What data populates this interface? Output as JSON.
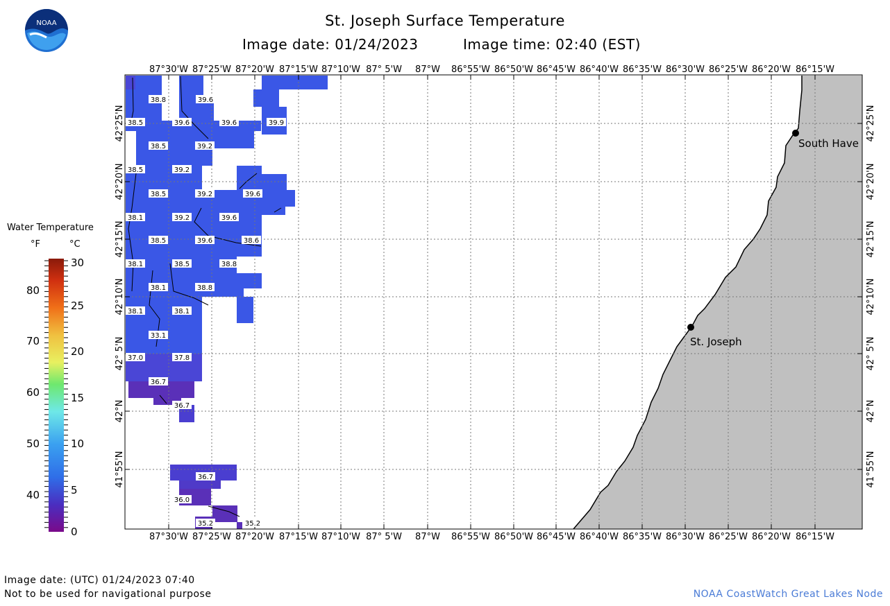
{
  "header": {
    "title": "St. Joseph Surface Temperature",
    "image_date_label": "Image date: 01/24/2023",
    "image_time_label": "Image time: 02:40 (EST)"
  },
  "logo": {
    "text": "NOAA",
    "icon": "noaa-logo-icon"
  },
  "legend": {
    "title": "Water Temperature",
    "unit_f": "°F",
    "unit_c": "°C",
    "f_ticks": [
      "80",
      "70",
      "60",
      "50",
      "40"
    ],
    "c_ticks": [
      "30",
      "25",
      "20",
      "15",
      "10",
      "5",
      "0"
    ]
  },
  "map": {
    "lon_labels": [
      "87°30'W",
      "87°25'W",
      "87°20'W",
      "87°15'W",
      "87°10'W",
      "87° 5'W",
      "87°W",
      "86°55'W",
      "86°50'W",
      "86°45'W",
      "86°40'W",
      "86°35'W",
      "86°30'W",
      "86°25'W",
      "86°20'W",
      "86°15'W"
    ],
    "lat_labels": [
      "42°25'N",
      "42°20'N",
      "42°15'N",
      "42°10'N",
      "42° 5'N",
      "42°N",
      "41°55'N"
    ],
    "cities": [
      {
        "name": "South Have"
      },
      {
        "name": "St. Joseph"
      }
    ],
    "temp_labels": [
      "38.8",
      "39.6",
      "38.5",
      "39.6",
      "39.6",
      "39.9",
      "38.5",
      "39.2",
      "38.5",
      "39.2",
      "38.5",
      "39.2",
      "39.6",
      "38.1",
      "39.2",
      "39.6",
      "38.5",
      "39.6",
      "38.6",
      "38.1",
      "38.5",
      "38.8",
      "38.1",
      "38.8",
      "38.1",
      "38.1",
      "33.1",
      "37.0",
      "37.8",
      "36.7",
      "36.7",
      "36.7",
      "36.0",
      "35.2",
      "35.2"
    ],
    "colors": {
      "water_dark": "#4a46d6",
      "water_light": "#3a57e6",
      "water_purple": "#5a30b8",
      "land": "#c0c0c0",
      "grid": "#777777"
    }
  },
  "footer": {
    "utc_date": "Image date: (UTC) 01/24/2023  07:40",
    "disclaimer": "Not to be used for navigational purpose",
    "credit": "NOAA CoastWatch Great Lakes Node"
  }
}
